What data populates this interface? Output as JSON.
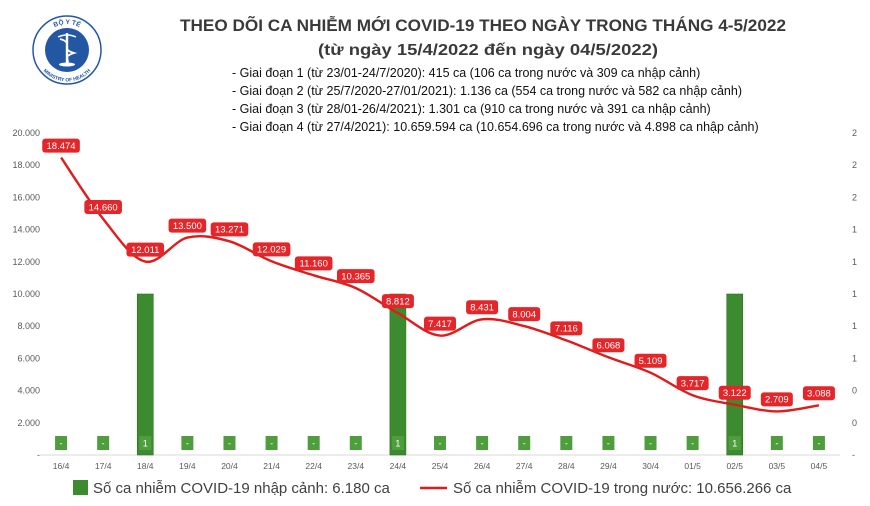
{
  "logo": {
    "top_text": "BỘ Y TẾ",
    "bottom_text": "MINISTRY OF HEALTH"
  },
  "colors": {
    "title": "#3a3a3a",
    "bar": "#3d8b2f",
    "bar_label_box": "#4f9e3e",
    "line": "#e01b1b",
    "line_label_box": "#e3262a",
    "axis_text": "#595959",
    "baseline": "#d9d9d9",
    "logo_blue": "#2457a3"
  },
  "chart_data": {
    "type": "bar",
    "title": "THEO DÕI CA NHIỄM MỚI COVID-19 THEO NGÀY TRONG THÁNG 4-5/2022",
    "subtitle": "(từ ngày 15/4/2022 đến ngày 04/5/2022)",
    "annotations": [
      "- Giai đoạn 1 (từ 23/01-24/7/2020): 415 ca (106 ca trong nước và 309 ca nhập cảnh)",
      "- Giai đoạn 2 (từ 25/7/2020-27/01/2021): 1.136 ca (554 ca trong nước và 582 ca nhập cảnh)",
      "- Giai đoạn 3 (từ 28/01-26/4/2021): 1.301 ca (910 ca trong nước và 391 ca nhập cảnh)",
      "- Giai đoạn 4 (từ 27/4/2021): 10.659.594 ca (10.654.696 ca trong nước và 4.898 ca nhập cảnh)"
    ],
    "categories": [
      "16/4",
      "17/4",
      "18/4",
      "19/4",
      "20/4",
      "21/4",
      "22/4",
      "23/4",
      "24/4",
      "25/4",
      "26/4",
      "27/4",
      "28/4",
      "29/4",
      "30/4",
      "01/5",
      "02/5",
      "03/5",
      "04/5"
    ],
    "series": [
      {
        "name": "Số ca nhiễm COVID-19 nhập cảnh: 6.180 ca",
        "type": "bar",
        "axis": "right",
        "values": [
          0,
          0,
          1,
          0,
          0,
          0,
          0,
          0,
          1,
          0,
          0,
          0,
          0,
          0,
          0,
          0,
          1,
          0,
          0
        ],
        "labels": [
          "-",
          "-",
          "1",
          "-",
          "-",
          "-",
          "-",
          "-",
          "1",
          "-",
          "-",
          "-",
          "-",
          "-",
          "-",
          "-",
          "1",
          "-",
          "-"
        ]
      },
      {
        "name": "Số ca nhiễm COVID-19 trong nước: 10.656.266 ca",
        "type": "line",
        "axis": "left",
        "values": [
          18474,
          14660,
          12011,
          13500,
          13271,
          12029,
          11160,
          10365,
          8812,
          7417,
          8431,
          8004,
          7116,
          6068,
          5109,
          3717,
          3122,
          2709,
          3088
        ],
        "labels": [
          "18.474",
          "14.660",
          "12.011",
          "13.500",
          "13.271",
          "12.029",
          "11.160",
          "10.365",
          "8.812",
          "7.417",
          "8.431",
          "8.004",
          "7.116",
          "6.068",
          "5.109",
          "3.717",
          "3.122",
          "2.709",
          "3.088"
        ]
      }
    ],
    "y_left": {
      "range": [
        0,
        20000
      ],
      "tick_labels": [
        "-",
        "2.000",
        "4.000",
        "6.000",
        "8.000",
        "10.000",
        "12.000",
        "14.000",
        "16.000",
        "18.000",
        "20.000"
      ]
    },
    "y_right": {
      "range": [
        0,
        2
      ],
      "tick_labels": [
        "-",
        "0",
        "0",
        "1",
        "1",
        "1",
        "1",
        "1",
        "2",
        "2",
        "2"
      ]
    },
    "grid": false,
    "legend_position": "bottom"
  }
}
